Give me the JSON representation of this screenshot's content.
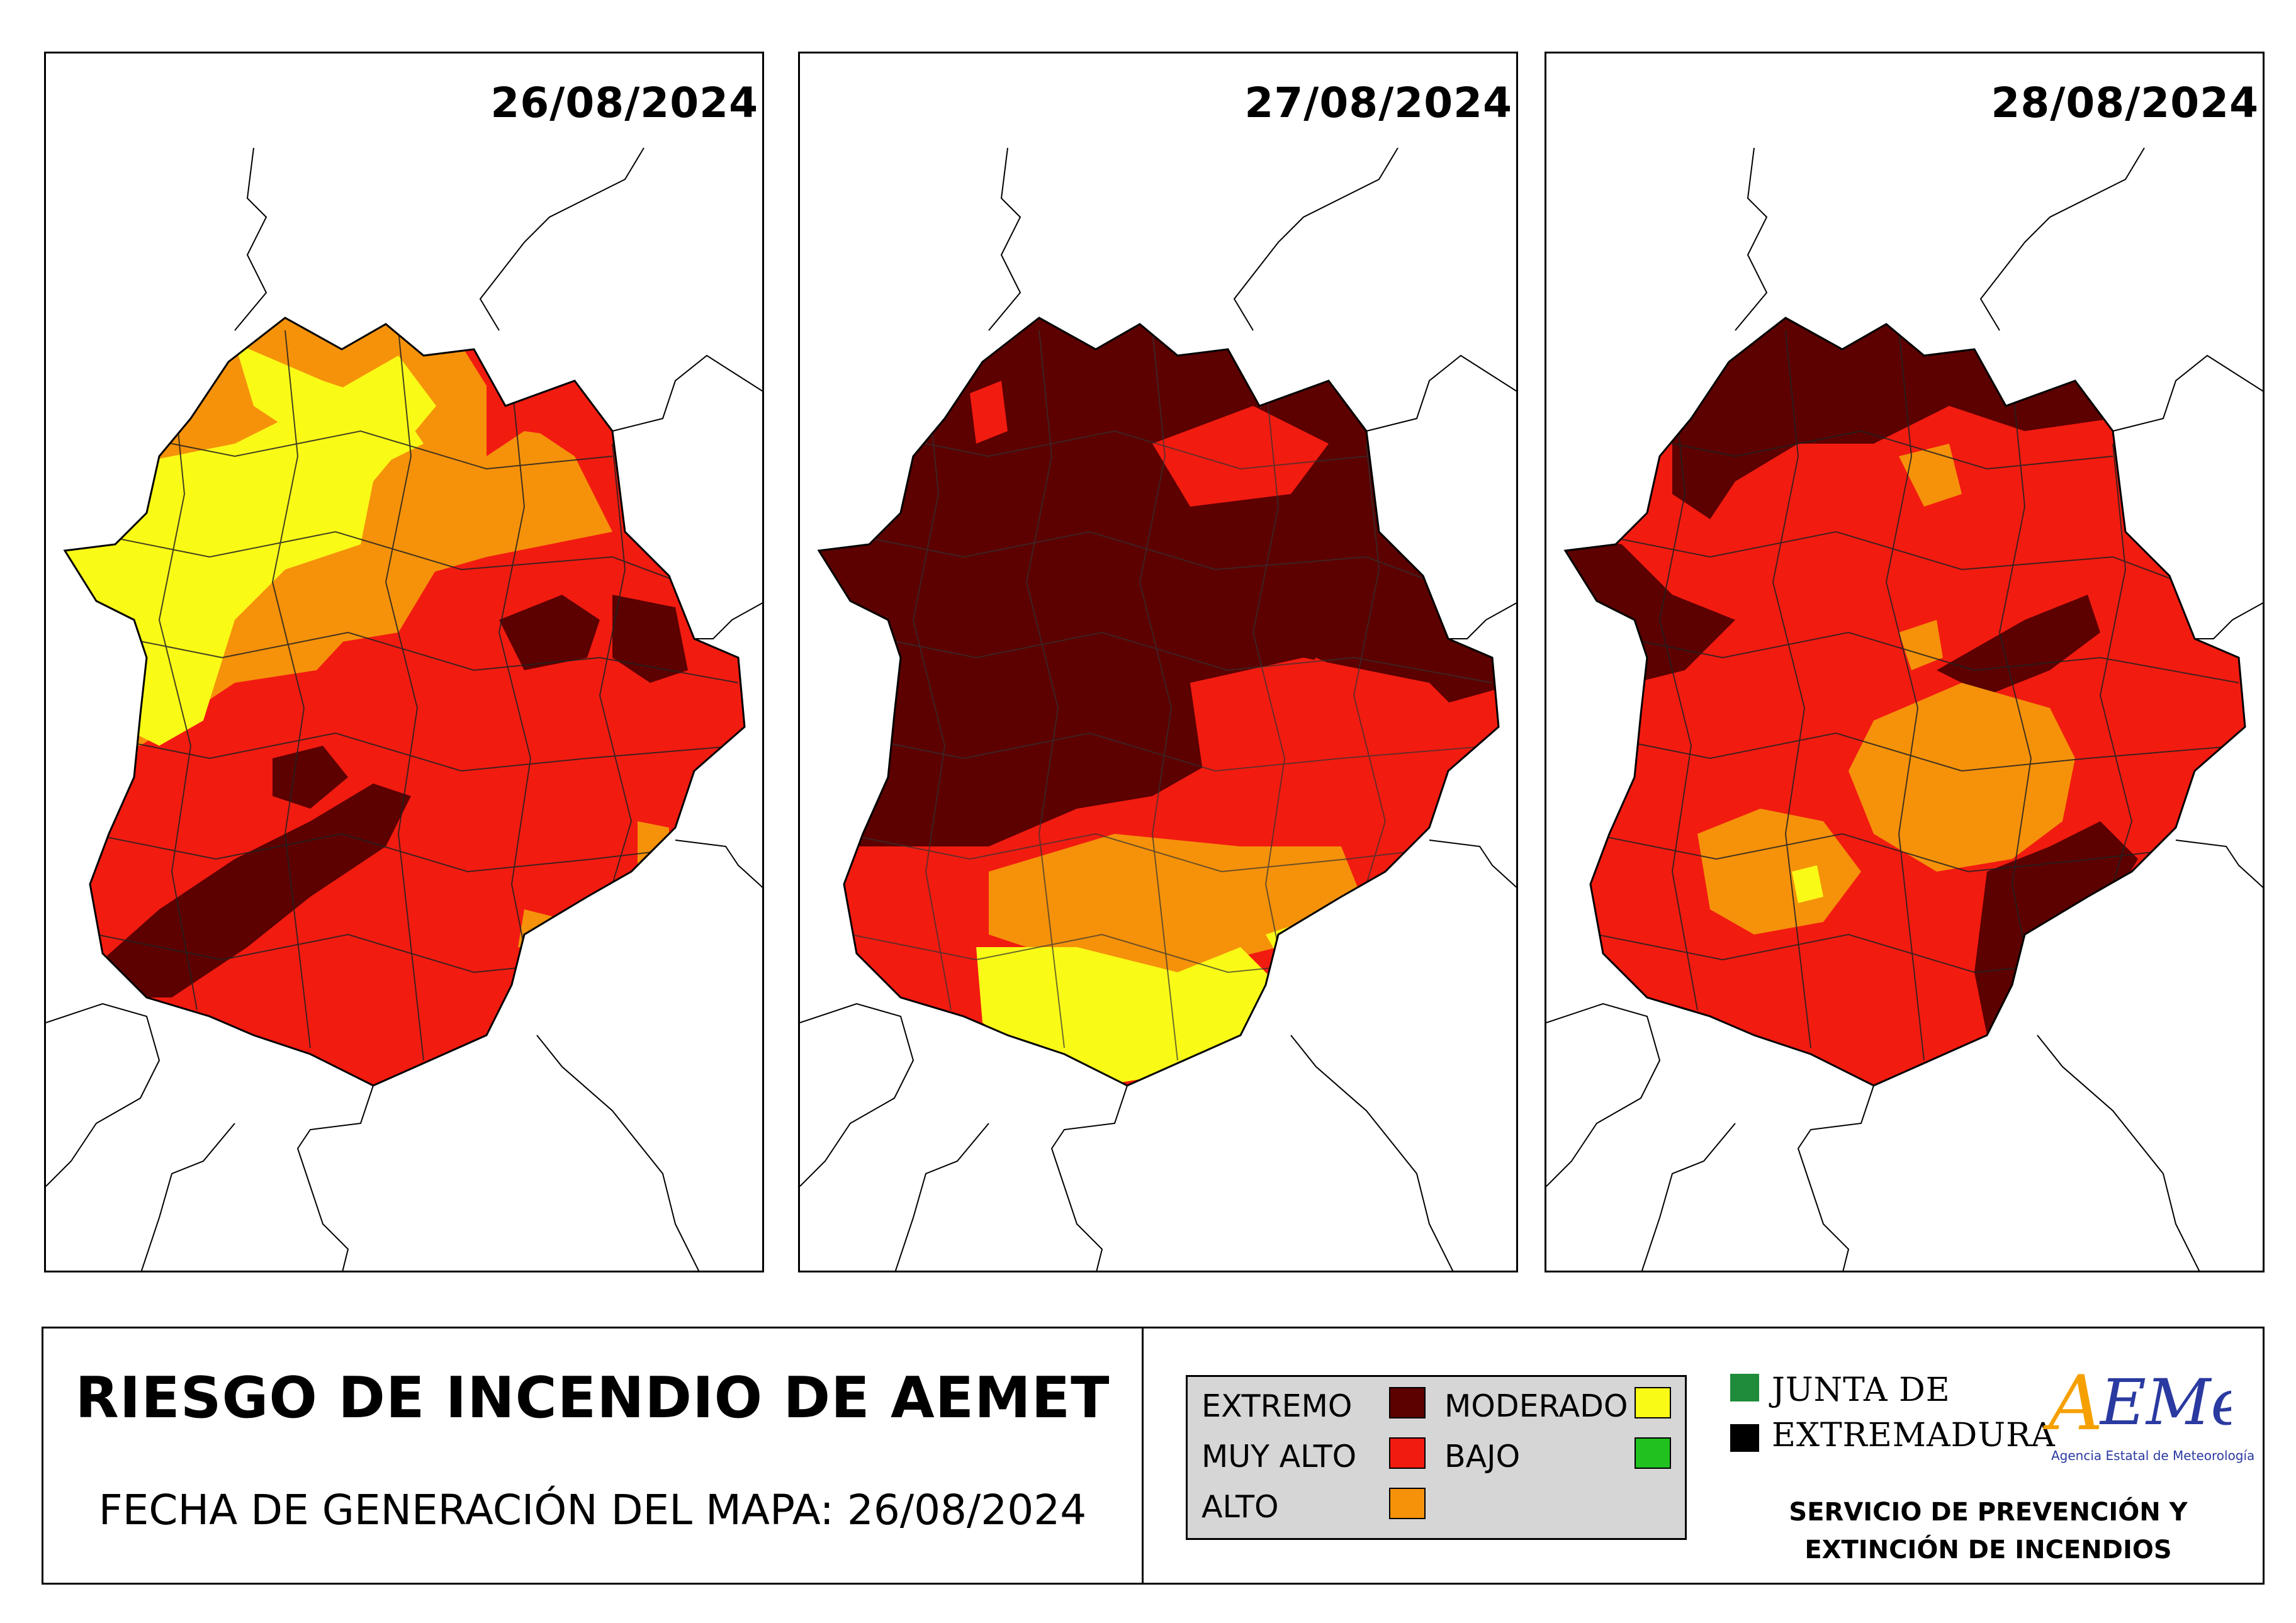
{
  "maps": [
    {
      "date": "26/08/2024",
      "dominant": "mixed-west-yellow-south-red"
    },
    {
      "date": "27/08/2024",
      "dominant": "extremo-north-moderado-south"
    },
    {
      "date": "28/08/2024",
      "dominant": "muy-alto-with-extremo-north"
    }
  ],
  "title": "RIESGO DE INCENDIO DE AEMET",
  "generation_label": "FECHA DE GENERACIÓN DEL MAPA: 26/08/2024",
  "legend": {
    "items": [
      {
        "label": "EXTREMO",
        "color": "#5c0000"
      },
      {
        "label": "MUY ALTO",
        "color": "#f21b10"
      },
      {
        "label": "ALTO",
        "color": "#f5920a"
      },
      {
        "label": "MODERADO",
        "color": "#fafa17"
      },
      {
        "label": "BAJO",
        "color": "#1fc21f"
      }
    ]
  },
  "junta": {
    "line1": "JUNTA DE",
    "line2": "EXTREMADURA",
    "green": "#1e8c3a",
    "black": "#000000"
  },
  "aemet": {
    "logo_text": "AEMet",
    "subtitle": "Agencia Estatal de Meteorología",
    "color_a": "#f5a000",
    "color_main": "#2a3aa0"
  },
  "service": {
    "line1": "SERVICIO DE PREVENCIÓN Y",
    "line2": "EXTINCIÓN DE INCENDIOS"
  },
  "colors": {
    "extremo": "#5c0000",
    "muy_alto": "#f21b10",
    "alto": "#f5920a",
    "moderado": "#fafa17",
    "bajo": "#1fc21f"
  }
}
